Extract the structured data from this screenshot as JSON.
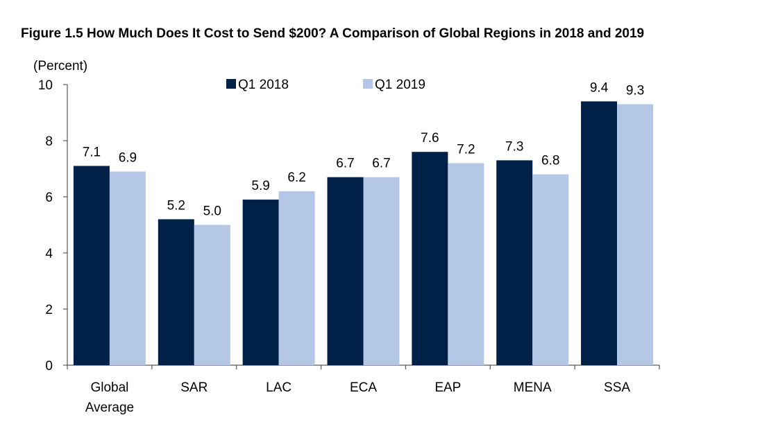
{
  "chart_data": {
    "type": "bar",
    "title": "Figure 1.5 How Much Does It Cost to Send $200? A Comparison of Global Regions in 2018 and 2019",
    "ylabel": "(Percent)",
    "xlabel": "",
    "ylim": [
      0,
      10
    ],
    "yticks": [
      0,
      2,
      4,
      6,
      8,
      10
    ],
    "grid": false,
    "legend_position": "top-center",
    "categories": [
      [
        "Global",
        "Average"
      ],
      [
        "SAR"
      ],
      [
        "LAC"
      ],
      [
        "ECA"
      ],
      [
        "EAP"
      ],
      [
        "MENA"
      ],
      [
        "SSA"
      ]
    ],
    "series": [
      {
        "name": "Q1 2018",
        "color": "#002147",
        "values": [
          7.1,
          5.2,
          5.9,
          6.7,
          7.6,
          7.3,
          9.4
        ],
        "labels": [
          "7.1",
          "5.2",
          "5.9",
          "6.7",
          "7.6",
          "7.3",
          "9.4"
        ]
      },
      {
        "name": "Q1 2019",
        "color": "#b4c7e7",
        "values": [
          6.9,
          5.0,
          6.2,
          6.7,
          7.2,
          6.8,
          9.3
        ],
        "labels": [
          "6.9",
          "5.0",
          "6.2",
          "6.7",
          "7.2",
          "6.8",
          "9.3"
        ]
      }
    ]
  }
}
